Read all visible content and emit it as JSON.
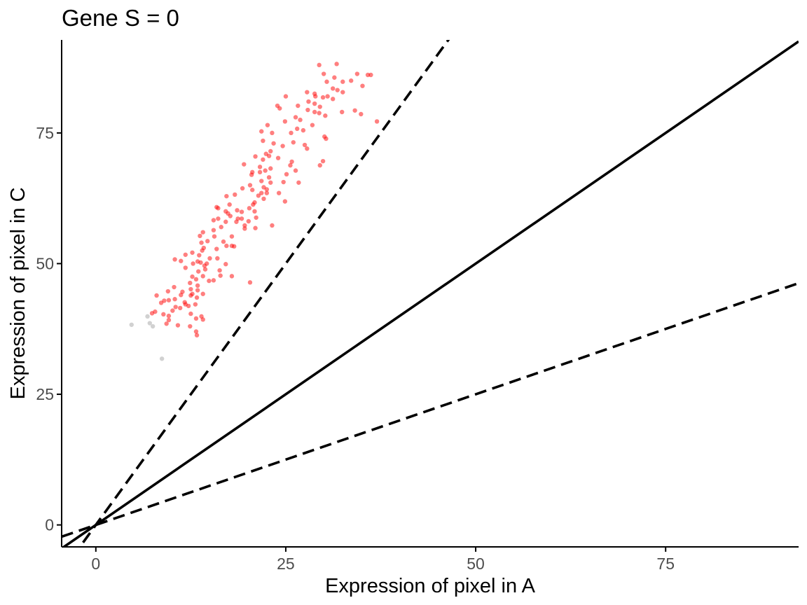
{
  "chart_data": {
    "type": "scatter",
    "title": "Gene  S =  0",
    "xlabel": "Expression of pixel in A",
    "ylabel": "Expression of pixel in C",
    "xlim": [
      -4.5,
      92.5
    ],
    "ylim": [
      -4.2,
      92.8
    ],
    "x_ticks": [
      0,
      25,
      50,
      75
    ],
    "y_ticks": [
      0,
      25,
      50,
      75
    ],
    "x_tick_labels": [
      "0",
      "25",
      "50",
      "75"
    ],
    "y_tick_labels": [
      "0",
      "25",
      "50",
      "75"
    ],
    "grid": false,
    "legend": "none",
    "reference_lines": [
      {
        "kind": "solid",
        "slope": 1
      },
      {
        "kind": "dashed",
        "slope": 2
      },
      {
        "kind": "dashed",
        "slope": 0.5
      }
    ],
    "colors": {
      "highlighted": "#ff0000",
      "other": "#bebebe",
      "lines": "#000000"
    },
    "series": [
      {
        "role": "highlighted",
        "points": [
          [
            31.7,
            88.2
          ],
          [
            29.4,
            88.0
          ],
          [
            34.4,
            86.3
          ],
          [
            35.8,
            86.1
          ],
          [
            36.2,
            86.1
          ],
          [
            30.0,
            86.3
          ],
          [
            31.4,
            85.6
          ],
          [
            33.6,
            85.0
          ],
          [
            32.5,
            84.8
          ],
          [
            30.4,
            84.8
          ],
          [
            35.1,
            84.0
          ],
          [
            31.2,
            83.5
          ],
          [
            31.8,
            83.2
          ],
          [
            32.5,
            82.8
          ],
          [
            27.8,
            82.8
          ],
          [
            28.8,
            82.5
          ],
          [
            30.5,
            82.0
          ],
          [
            29.9,
            81.8
          ],
          [
            31.2,
            81.5
          ],
          [
            25.0,
            82.0
          ],
          [
            28.0,
            81.0
          ],
          [
            28.8,
            80.6
          ],
          [
            29.5,
            80.0
          ],
          [
            26.6,
            80.2
          ],
          [
            23.9,
            80.2
          ],
          [
            24.2,
            79.7
          ],
          [
            27.9,
            79.4
          ],
          [
            28.8,
            79.0
          ],
          [
            29.4,
            78.8
          ],
          [
            30.2,
            78.3
          ],
          [
            32.4,
            79.0
          ],
          [
            34.1,
            79.3
          ],
          [
            34.9,
            78.6
          ],
          [
            37.0,
            77.2
          ],
          [
            26.3,
            78.0
          ],
          [
            26.9,
            77.5
          ],
          [
            24.9,
            77.2
          ],
          [
            28.5,
            76.5
          ],
          [
            22.6,
            76.5
          ],
          [
            21.8,
            75.3
          ],
          [
            26.5,
            75.8
          ],
          [
            27.3,
            75.5
          ],
          [
            23.2,
            75.0
          ],
          [
            25.7,
            75.0
          ],
          [
            30.1,
            74.3
          ],
          [
            30.3,
            73.9
          ],
          [
            22.0,
            73.5
          ],
          [
            23.4,
            73.0
          ],
          [
            26.0,
            73.2
          ],
          [
            27.5,
            72.7
          ],
          [
            24.6,
            72.5
          ],
          [
            27.8,
            72.0
          ],
          [
            23.0,
            71.5
          ],
          [
            22.4,
            71.0
          ],
          [
            22.8,
            70.6
          ],
          [
            21.0,
            70.5
          ],
          [
            24.0,
            70.2
          ],
          [
            22.0,
            69.9
          ],
          [
            25.8,
            69.5
          ],
          [
            29.9,
            69.6
          ],
          [
            19.5,
            69.0
          ],
          [
            25.6,
            68.8
          ],
          [
            29.5,
            68.8
          ],
          [
            21.6,
            68.5
          ],
          [
            23.0,
            68.2
          ],
          [
            22.3,
            67.8
          ],
          [
            21.6,
            67.5
          ],
          [
            20.6,
            67.5
          ],
          [
            20.5,
            67.0
          ],
          [
            25.1,
            67.1
          ],
          [
            22.8,
            66.5
          ],
          [
            21.8,
            65.8
          ],
          [
            24.7,
            65.6
          ],
          [
            23.0,
            65.5
          ],
          [
            26.7,
            65.5
          ],
          [
            20.3,
            65.0
          ],
          [
            22.1,
            64.6
          ],
          [
            22.5,
            64.2
          ],
          [
            19.3,
            64.4
          ],
          [
            20.6,
            64.1
          ],
          [
            21.8,
            63.5
          ],
          [
            22.5,
            63.5
          ],
          [
            24.1,
            63.5
          ],
          [
            21.4,
            63.0
          ],
          [
            18.3,
            63.2
          ],
          [
            17.2,
            62.9
          ],
          [
            22.1,
            62.4
          ],
          [
            20.9,
            61.7
          ],
          [
            20.7,
            61.3
          ],
          [
            17.6,
            61.3
          ],
          [
            15.9,
            60.8
          ],
          [
            16.1,
            60.6
          ],
          [
            20.2,
            60.6
          ],
          [
            17.1,
            60.0
          ],
          [
            18.6,
            60.2
          ],
          [
            19.2,
            59.9
          ],
          [
            20.9,
            60.0
          ],
          [
            17.4,
            59.6
          ],
          [
            17.7,
            59.1
          ],
          [
            18.7,
            58.6
          ],
          [
            19.2,
            58.6
          ],
          [
            21.1,
            58.8
          ],
          [
            16.1,
            58.6
          ],
          [
            15.5,
            58.3
          ],
          [
            20.1,
            58.1
          ],
          [
            17.1,
            58.0
          ],
          [
            18.5,
            58.0
          ],
          [
            19.6,
            57.3
          ],
          [
            23.2,
            57.3
          ],
          [
            21.0,
            56.8
          ],
          [
            16.5,
            57.0
          ],
          [
            15.5,
            56.4
          ],
          [
            14.1,
            56.0
          ],
          [
            13.7,
            55.3
          ],
          [
            15.6,
            55.2
          ],
          [
            17.9,
            55.2
          ],
          [
            19.6,
            56.7
          ],
          [
            14.7,
            54.3
          ],
          [
            13.9,
            54.0
          ],
          [
            16.8,
            54.2
          ],
          [
            17.2,
            53.4
          ],
          [
            17.9,
            53.4
          ],
          [
            18.2,
            53.3
          ],
          [
            14.2,
            53.0
          ],
          [
            15.9,
            52.8
          ],
          [
            14.0,
            52.5
          ],
          [
            12.7,
            52.1
          ],
          [
            13.6,
            51.6
          ],
          [
            11.8,
            51.7
          ],
          [
            15.0,
            51.0
          ],
          [
            16.0,
            51.0
          ],
          [
            10.4,
            50.8
          ],
          [
            11.2,
            50.5
          ],
          [
            13.4,
            50.4
          ],
          [
            13.8,
            50.2
          ],
          [
            14.6,
            50.0
          ],
          [
            12.8,
            50.0
          ],
          [
            17.1,
            49.9
          ],
          [
            14.3,
            49.6
          ],
          [
            11.8,
            49.2
          ],
          [
            14.4,
            48.9
          ],
          [
            16.3,
            48.7
          ],
          [
            13.5,
            48.5
          ],
          [
            16.4,
            47.7
          ],
          [
            17.9,
            47.6
          ],
          [
            14.1,
            47.6
          ],
          [
            12.7,
            47.5
          ],
          [
            13.2,
            47.0
          ],
          [
            14.9,
            46.7
          ],
          [
            15.5,
            46.8
          ],
          [
            12.4,
            46.3
          ],
          [
            20.3,
            46.4
          ],
          [
            13.4,
            45.8
          ],
          [
            10.3,
            45.5
          ],
          [
            12.5,
            45.1
          ],
          [
            13.4,
            44.9
          ],
          [
            11.4,
            44.6
          ],
          [
            9.5,
            44.7
          ],
          [
            12.7,
            44.2
          ],
          [
            14.1,
            44.2
          ],
          [
            11.2,
            44.0
          ],
          [
            12.5,
            43.9
          ],
          [
            8.0,
            43.9
          ],
          [
            10.4,
            43.2
          ],
          [
            13.3,
            43.5
          ],
          [
            9.6,
            43.0
          ],
          [
            9.0,
            42.9
          ],
          [
            11.7,
            42.6
          ],
          [
            8.6,
            42.5
          ],
          [
            13.1,
            42.2
          ],
          [
            11.8,
            42.2
          ],
          [
            12.2,
            41.9
          ],
          [
            10.5,
            41.7
          ],
          [
            11.1,
            41.5
          ],
          [
            10.1,
            41.0
          ],
          [
            7.8,
            40.8
          ],
          [
            7.4,
            40.5
          ],
          [
            8.9,
            40.3
          ],
          [
            12.5,
            40.4
          ],
          [
            9.6,
            40.0
          ],
          [
            13.9,
            39.9
          ],
          [
            13.2,
            39.5
          ],
          [
            9.6,
            39.2
          ],
          [
            14.1,
            39.3
          ],
          [
            9.3,
            38.5
          ],
          [
            10.8,
            38.2
          ],
          [
            12.4,
            38.0
          ],
          [
            13.2,
            37.0
          ],
          [
            13.3,
            36.3
          ],
          [
            24.9,
            61.9
          ],
          [
            26.3,
            67.8
          ],
          [
            28.9,
            82.0
          ]
        ]
      },
      {
        "role": "other",
        "points": [
          [
            4.7,
            38.3
          ],
          [
            6.8,
            39.9
          ],
          [
            7.1,
            38.6
          ],
          [
            7.5,
            38.0
          ],
          [
            8.7,
            31.8
          ]
        ]
      }
    ]
  }
}
